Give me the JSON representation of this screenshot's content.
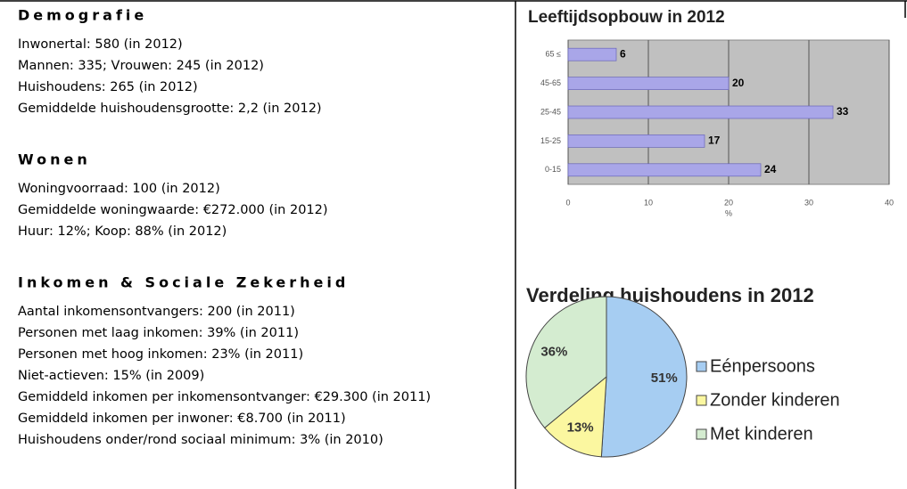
{
  "sections": [
    {
      "title": "Demografie",
      "lines": [
        "Inwonertal: 580 (in 2012)",
        "Mannen: 335; Vrouwen: 245 (in 2012)",
        "Huishoudens: 265 (in 2012)",
        "Gemiddelde huishoudensgrootte: 2,2 (in 2012)"
      ]
    },
    {
      "title": "Wonen",
      "lines": [
        "Woningvoorraad: 100 (in 2012)",
        "Gemiddelde woningwaarde: €272.000 (in 2012)",
        "Huur: 12%; Koop: 88% (in 2012)"
      ]
    },
    {
      "title": "Inkomen & Sociale Zekerheid",
      "lines": [
        "Aantal inkomensontvangers: 200 (in 2011)",
        "Personen met laag inkomen: 39% (in 2011)",
        "Personen met hoog inkomen: 23% (in 2011)",
        "Niet-actieven: 15% (in 2009)",
        "Gemiddeld inkomen per inkomensontvanger: €29.300 (in 2011)",
        "Gemiddeld inkomen per inwoner: €8.700 (in 2011)",
        "Huishoudens onder/rond sociaal minimum: 3% (in 2010)"
      ]
    }
  ],
  "chart_data": [
    {
      "type": "bar",
      "orientation": "horizontal",
      "title": "Leeftijdsopbouw in 2012",
      "x_label": "%",
      "categories": [
        "65 ≤",
        "45-65",
        "25-45",
        "15-25",
        "0-15"
      ],
      "values": [
        6,
        20,
        33,
        17,
        24
      ],
      "color": "#a9a6e8",
      "xlim": [
        0,
        40
      ],
      "xticks": [
        0,
        10,
        20,
        30,
        40
      ],
      "grid": true
    },
    {
      "type": "pie",
      "title": "Verdeling huishoudens in 2012",
      "legend": "right",
      "categories": [
        "Eénpersoons",
        "Zonder kinderen",
        "Met kinderen"
      ],
      "values": [
        51,
        13,
        36
      ],
      "value_labels": [
        "51%",
        "13%",
        "36%"
      ],
      "colors": [
        "#a6cdf2",
        "#fbf7a0",
        "#d4ecd0"
      ]
    }
  ]
}
